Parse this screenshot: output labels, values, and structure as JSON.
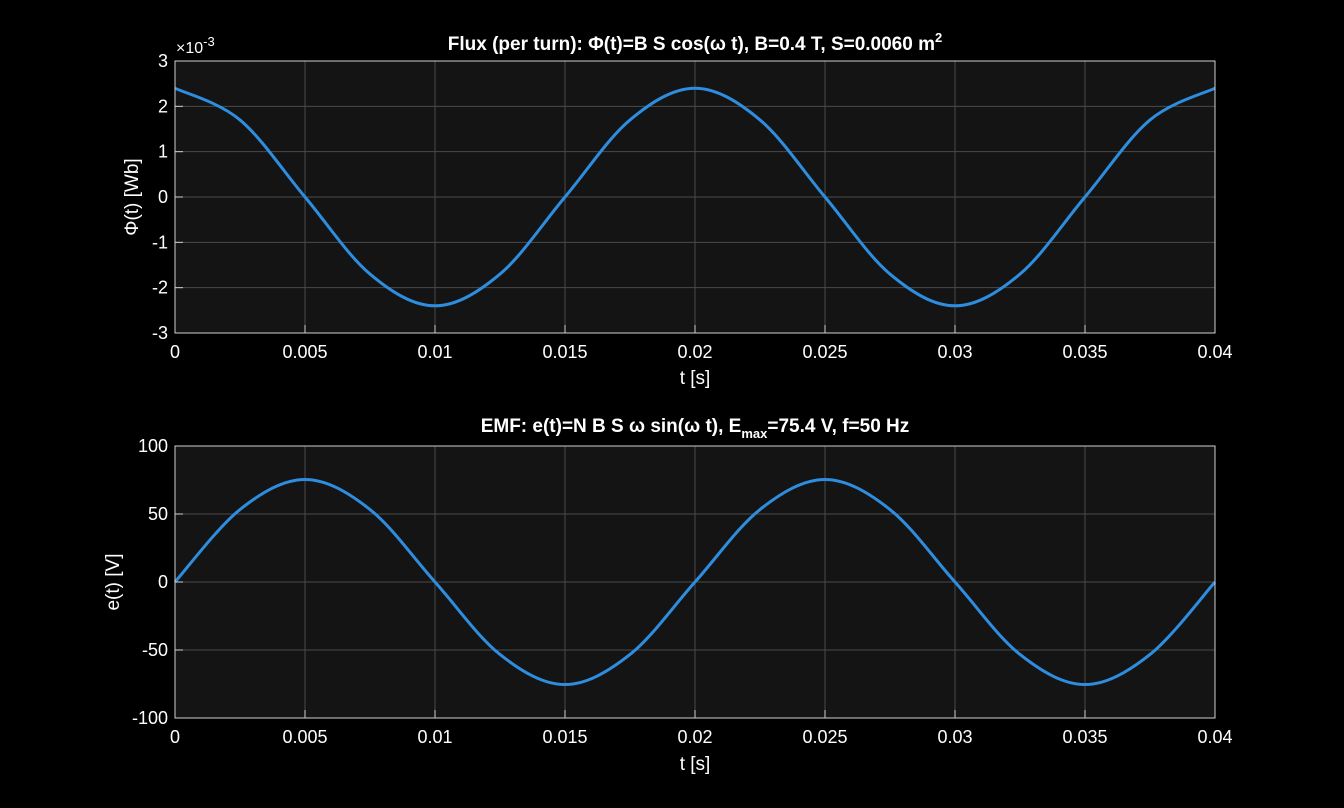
{
  "chart_data": [
    {
      "type": "line",
      "title": {
        "main": "Flux  (per  turn):  Φ(t)=B  S  cos(ω  t),   B=0.4  T,  S=0.0060  m",
        "sup": "2"
      },
      "xlabel": "t [s]",
      "ylabel": "Φ(t)  [Wb]",
      "exponent_label": {
        "base": "×10",
        "sup": "-3"
      },
      "xlim": [
        0,
        0.04
      ],
      "ylim": [
        -3,
        3
      ],
      "xticks": [
        0,
        0.005,
        0.01,
        0.015,
        0.02,
        0.025,
        0.03,
        0.035,
        0.04
      ],
      "xtick_labels": [
        "0",
        "0.005",
        "0.01",
        "0.015",
        "0.02",
        "0.025",
        "0.03",
        "0.035",
        "0.04"
      ],
      "yticks": [
        -3,
        -2,
        -1,
        0,
        1,
        2,
        3
      ],
      "ytick_labels": [
        "-3",
        "-2",
        "-1",
        "0",
        "1",
        "2",
        "3"
      ],
      "grid": true,
      "background": "#141414",
      "line_color": "#2e8ddf",
      "series": [
        {
          "x": [
            0,
            0.0025,
            0.005,
            0.0075,
            0.01,
            0.0125,
            0.015,
            0.0175,
            0.02,
            0.0225,
            0.025,
            0.0275,
            0.03,
            0.0325,
            0.035,
            0.0375,
            0.04
          ],
          "y": [
            2.4,
            1.7,
            0,
            -1.7,
            -2.4,
            -1.7,
            0,
            1.7,
            2.4,
            1.7,
            0,
            -1.7,
            -2.4,
            -1.7,
            0,
            1.7,
            2.4
          ]
        }
      ]
    },
    {
      "type": "line",
      "title": {
        "pre": "EMF:  e(t)=N  B  S  ω  sin(ω  t),   E",
        "sub": "max",
        "post": "=75.4  V,  f=50  Hz"
      },
      "xlabel": "t [s]",
      "ylabel": "e(t) [V]",
      "xlim": [
        0,
        0.04
      ],
      "ylim": [
        -100,
        100
      ],
      "xticks": [
        0,
        0.005,
        0.01,
        0.015,
        0.02,
        0.025,
        0.03,
        0.035,
        0.04
      ],
      "xtick_labels": [
        "0",
        "0.005",
        "0.01",
        "0.015",
        "0.02",
        "0.025",
        "0.03",
        "0.035",
        "0.04"
      ],
      "yticks": [
        -100,
        -50,
        0,
        50,
        100
      ],
      "ytick_labels": [
        "-100",
        "-50",
        "0",
        "50",
        "100"
      ],
      "grid": true,
      "background": "#141414",
      "line_color": "#2e8ddf",
      "series": [
        {
          "x": [
            0,
            0.0025,
            0.005,
            0.0075,
            0.01,
            0.0125,
            0.015,
            0.0175,
            0.02,
            0.0225,
            0.025,
            0.0275,
            0.03,
            0.0325,
            0.035,
            0.0375,
            0.04
          ],
          "y": [
            0,
            53.3,
            75.4,
            53.3,
            0,
            -53.3,
            -75.4,
            -53.3,
            0,
            53.3,
            75.4,
            53.3,
            0,
            -53.3,
            -75.4,
            -53.3,
            0
          ]
        }
      ]
    }
  ]
}
